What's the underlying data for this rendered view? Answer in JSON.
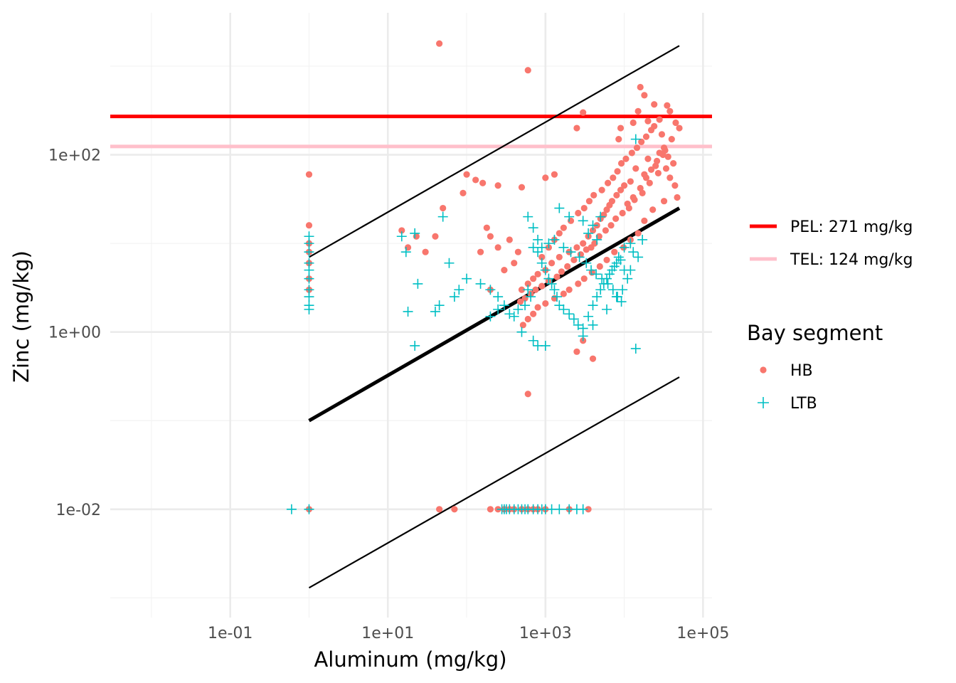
{
  "chart_data": {
    "type": "scatter",
    "xlabel": "Aluminum (mg/kg)",
    "ylabel": "Zinc (mg/kg)",
    "x_scale": "log10",
    "y_scale": "log10",
    "xlim": [
      0.003,
      130000
    ],
    "ylim": [
      0.0006,
      4000
    ],
    "x_ticks": [
      {
        "value": 0.1,
        "label": "1e-01"
      },
      {
        "value": 10,
        "label": "1e+01"
      },
      {
        "value": 1000,
        "label": "1e+03"
      },
      {
        "value": 100000,
        "label": "1e+05"
      }
    ],
    "y_ticks": [
      {
        "value": 0.01,
        "label": "1e-02"
      },
      {
        "value": 1,
        "label": "1e+00"
      },
      {
        "value": 100,
        "label": "1e+02"
      }
    ],
    "grid": true,
    "legend_position": "right",
    "legend_title": "Bay segment",
    "reference_lines": [
      {
        "label": "PEL: 271 mg/kg",
        "y": 271,
        "color": "#ff0000"
      },
      {
        "label": "TEL: 124 mg/kg",
        "y": 124,
        "color": "#ffc0cb"
      }
    ],
    "regression_lines": [
      {
        "role": "fit",
        "x": [
          1,
          50000
        ],
        "y": [
          0.1,
          25
        ]
      },
      {
        "role": "upper",
        "x": [
          1,
          50000
        ],
        "y": [
          7,
          1700
        ]
      },
      {
        "role": "lower",
        "x": [
          1,
          50000
        ],
        "y": [
          0.0013,
          0.31
        ]
      }
    ],
    "series": [
      {
        "name": "HB",
        "marker": "circle",
        "color": "#f8766d",
        "points": [
          [
            45,
            1800
          ],
          [
            600,
            900
          ],
          [
            3000,
            300
          ],
          [
            2500,
            200
          ],
          [
            16000,
            580
          ],
          [
            18000,
            470
          ],
          [
            24000,
            370
          ],
          [
            35000,
            360
          ],
          [
            38000,
            310
          ],
          [
            20000,
            240
          ],
          [
            15000,
            310
          ],
          [
            13000,
            230
          ],
          [
            9000,
            200
          ],
          [
            8500,
            150
          ],
          [
            28000,
            250
          ],
          [
            40000,
            150
          ],
          [
            45000,
            230
          ],
          [
            50000,
            200
          ],
          [
            30000,
            170
          ],
          [
            32000,
            120
          ],
          [
            36000,
            95
          ],
          [
            42000,
            80
          ],
          [
            25000,
            75
          ],
          [
            20000,
            90
          ],
          [
            18000,
            60
          ],
          [
            14000,
            70
          ],
          [
            12000,
            50
          ],
          [
            10000,
            45
          ],
          [
            9000,
            40
          ],
          [
            8000,
            35
          ],
          [
            7000,
            30
          ],
          [
            6500,
            27
          ],
          [
            6000,
            24
          ],
          [
            5500,
            21
          ],
          [
            5000,
            19
          ],
          [
            4500,
            16
          ],
          [
            4000,
            14
          ],
          [
            3500,
            12
          ],
          [
            3000,
            10
          ],
          [
            2500,
            9
          ],
          [
            2000,
            8
          ],
          [
            1500,
            7
          ],
          [
            1200,
            6
          ],
          [
            1000,
            5
          ],
          [
            800,
            4.5
          ],
          [
            700,
            4
          ],
          [
            600,
            3.5
          ],
          [
            500,
            3
          ],
          [
            11000,
            28
          ],
          [
            13000,
            33
          ],
          [
            16000,
            42
          ],
          [
            19000,
            55
          ],
          [
            22000,
            68
          ],
          [
            26000,
            85
          ],
          [
            31000,
            100
          ],
          [
            33000,
            112
          ],
          [
            27000,
            62
          ],
          [
            21000,
            48
          ],
          [
            17000,
            37
          ],
          [
            13500,
            31
          ],
          [
            11500,
            25
          ],
          [
            9500,
            22
          ],
          [
            7800,
            19
          ],
          [
            6800,
            16
          ],
          [
            5800,
            14
          ],
          [
            4800,
            12
          ],
          [
            4200,
            10
          ],
          [
            3800,
            9
          ],
          [
            3300,
            8.5
          ],
          [
            2800,
            7.5
          ],
          [
            2300,
            6.5
          ],
          [
            1900,
            5.5
          ],
          [
            1600,
            4.8
          ],
          [
            1400,
            4.2
          ],
          [
            1100,
            3.8
          ],
          [
            900,
            3.3
          ],
          [
            750,
            3
          ],
          [
            650,
            2.7
          ],
          [
            550,
            2.4
          ],
          [
            480,
            2.2
          ],
          [
            900,
            7
          ],
          [
            1100,
            9
          ],
          [
            1300,
            11
          ],
          [
            1500,
            13
          ],
          [
            1700,
            15
          ],
          [
            2100,
            18
          ],
          [
            2600,
            22
          ],
          [
            3100,
            25
          ],
          [
            3600,
            30
          ],
          [
            4100,
            35
          ],
          [
            5200,
            40
          ],
          [
            6200,
            48
          ],
          [
            7200,
            55
          ],
          [
            8200,
            65
          ],
          [
            9200,
            80
          ],
          [
            10500,
            90
          ],
          [
            12500,
            105
          ],
          [
            14500,
            120
          ],
          [
            16500,
            140
          ],
          [
            19000,
            160
          ],
          [
            22000,
            190
          ],
          [
            24000,
            210
          ],
          [
            28000,
            105
          ],
          [
            34000,
            70
          ],
          [
            38000,
            55
          ],
          [
            44000,
            45
          ],
          [
            47000,
            33
          ],
          [
            32000,
            30
          ],
          [
            23000,
            24
          ],
          [
            18000,
            18
          ],
          [
            15000,
            13
          ],
          [
            12000,
            11
          ],
          [
            9800,
            9
          ],
          [
            7500,
            8
          ],
          [
            6000,
            6.5
          ],
          [
            4900,
            5.5
          ],
          [
            3900,
            4.7
          ],
          [
            3100,
            4
          ],
          [
            2600,
            3.5
          ],
          [
            2000,
            3
          ],
          [
            1700,
            2.7
          ],
          [
            1300,
            2.4
          ],
          [
            1000,
            2.1
          ],
          [
            800,
            1.9
          ],
          [
            700,
            1.6
          ],
          [
            600,
            1.4
          ],
          [
            520,
            1.2
          ],
          [
            3000,
            0.8
          ],
          [
            2500,
            0.6
          ],
          [
            600,
            0.2
          ],
          [
            4000,
            0.5
          ],
          [
            200,
            3
          ],
          [
            300,
            5
          ],
          [
            400,
            6
          ],
          [
            150,
            8
          ],
          [
            250,
            9
          ],
          [
            200,
            12
          ],
          [
            180,
            15
          ],
          [
            350,
            11
          ],
          [
            450,
            8
          ],
          [
            100,
            60
          ],
          [
            130,
            52
          ],
          [
            160,
            48
          ],
          [
            250,
            45
          ],
          [
            500,
            43
          ],
          [
            1000,
            55
          ],
          [
            1300,
            60
          ],
          [
            90,
            37
          ],
          [
            50,
            25
          ],
          [
            15,
            14
          ],
          [
            18,
            9
          ],
          [
            23,
            12
          ],
          [
            40,
            12
          ],
          [
            30,
            8
          ],
          [
            1,
            60
          ],
          [
            1,
            16
          ],
          [
            1,
            10
          ],
          [
            1,
            8
          ],
          [
            1,
            6
          ],
          [
            1,
            4
          ],
          [
            1,
            3
          ],
          [
            45,
            0.01
          ],
          [
            70,
            0.01
          ],
          [
            200,
            0.01
          ],
          [
            250,
            0.01
          ],
          [
            300,
            0.01
          ],
          [
            350,
            0.01
          ],
          [
            400,
            0.01
          ],
          [
            500,
            0.01
          ],
          [
            600,
            0.01
          ],
          [
            700,
            0.01
          ],
          [
            800,
            0.01
          ],
          [
            1000,
            0.01
          ],
          [
            2000,
            0.01
          ],
          [
            3500,
            0.01
          ],
          [
            1,
            0.01
          ]
        ]
      },
      {
        "name": "LTB",
        "marker": "plus",
        "color": "#00bfc4",
        "points": [
          [
            14000,
            150
          ],
          [
            600,
            20
          ],
          [
            700,
            15
          ],
          [
            2000,
            20
          ],
          [
            3000,
            18
          ],
          [
            4000,
            16
          ],
          [
            5000,
            20
          ],
          [
            1500,
            25
          ],
          [
            800,
            8
          ],
          [
            900,
            6
          ],
          [
            1000,
            5
          ],
          [
            1100,
            4
          ],
          [
            1200,
            3.5
          ],
          [
            1300,
            3
          ],
          [
            1400,
            2.5
          ],
          [
            1500,
            2
          ],
          [
            1700,
            1.8
          ],
          [
            2000,
            1.6
          ],
          [
            2300,
            1.4
          ],
          [
            2600,
            1.2
          ],
          [
            3000,
            1.1
          ],
          [
            3500,
            1.5
          ],
          [
            4000,
            2
          ],
          [
            4500,
            2.5
          ],
          [
            5000,
            3
          ],
          [
            5500,
            3.5
          ],
          [
            6000,
            4
          ],
          [
            6500,
            4.5
          ],
          [
            7000,
            5
          ],
          [
            7500,
            5.5
          ],
          [
            8000,
            6
          ],
          [
            8500,
            7
          ],
          [
            9000,
            6.5
          ],
          [
            10000,
            5
          ],
          [
            11000,
            4
          ],
          [
            13000,
            8
          ],
          [
            15000,
            7
          ],
          [
            12000,
            5
          ],
          [
            9500,
            3
          ],
          [
            8000,
            2.5
          ],
          [
            6000,
            1.8
          ],
          [
            4000,
            1.2
          ],
          [
            3000,
            0.9
          ],
          [
            700,
            0.8
          ],
          [
            800,
            0.7
          ],
          [
            1000,
            0.7
          ],
          [
            500,
            1
          ],
          [
            400,
            1.5
          ],
          [
            300,
            2
          ],
          [
            250,
            2.5
          ],
          [
            200,
            3
          ],
          [
            150,
            3.5
          ],
          [
            100,
            4
          ],
          [
            80,
            3
          ],
          [
            70,
            2.5
          ],
          [
            200,
            1.5
          ],
          [
            250,
            1.8
          ],
          [
            14000,
            0.65
          ],
          [
            15,
            12
          ],
          [
            17,
            8
          ],
          [
            22,
            13
          ],
          [
            24,
            3.5
          ],
          [
            50,
            20
          ],
          [
            60,
            6
          ],
          [
            22,
            0.7
          ],
          [
            18,
            1.7
          ],
          [
            40,
            1.7
          ],
          [
            45,
            2
          ],
          [
            600,
            3
          ],
          [
            650,
            2.5
          ],
          [
            550,
            2
          ],
          [
            450,
            1.8
          ],
          [
            350,
            1.6
          ],
          [
            900,
            9
          ],
          [
            1100,
            10
          ],
          [
            1300,
            11
          ],
          [
            1700,
            9
          ],
          [
            2100,
            8
          ],
          [
            2700,
            7
          ],
          [
            3300,
            6
          ],
          [
            3800,
            5
          ],
          [
            4400,
            4.5
          ],
          [
            5200,
            4
          ],
          [
            6200,
            3.5
          ],
          [
            7200,
            3
          ],
          [
            8200,
            2.5
          ],
          [
            9200,
            2.2
          ],
          [
            700,
            9
          ],
          [
            800,
            11
          ],
          [
            3500,
            13
          ],
          [
            4500,
            11
          ],
          [
            10000,
            9
          ],
          [
            12000,
            10
          ],
          [
            17000,
            11
          ],
          [
            1,
            12
          ],
          [
            1,
            10
          ],
          [
            1,
            8
          ],
          [
            1,
            6
          ],
          [
            1,
            5
          ],
          [
            1,
            4
          ],
          [
            1,
            3
          ],
          [
            1,
            2.5
          ],
          [
            1,
            2
          ],
          [
            1,
            1.8
          ],
          [
            1,
            0.01
          ],
          [
            0.6,
            0.01
          ],
          [
            280,
            0.01
          ],
          [
            300,
            0.01
          ],
          [
            320,
            0.01
          ],
          [
            350,
            0.01
          ],
          [
            400,
            0.01
          ],
          [
            450,
            0.01
          ],
          [
            500,
            0.01
          ],
          [
            550,
            0.01
          ],
          [
            600,
            0.01
          ],
          [
            700,
            0.01
          ],
          [
            800,
            0.01
          ],
          [
            900,
            0.01
          ],
          [
            1000,
            0.01
          ],
          [
            1200,
            0.01
          ],
          [
            1500,
            0.01
          ],
          [
            2000,
            0.01
          ],
          [
            2500,
            0.01
          ],
          [
            3000,
            0.01
          ]
        ]
      }
    ]
  }
}
